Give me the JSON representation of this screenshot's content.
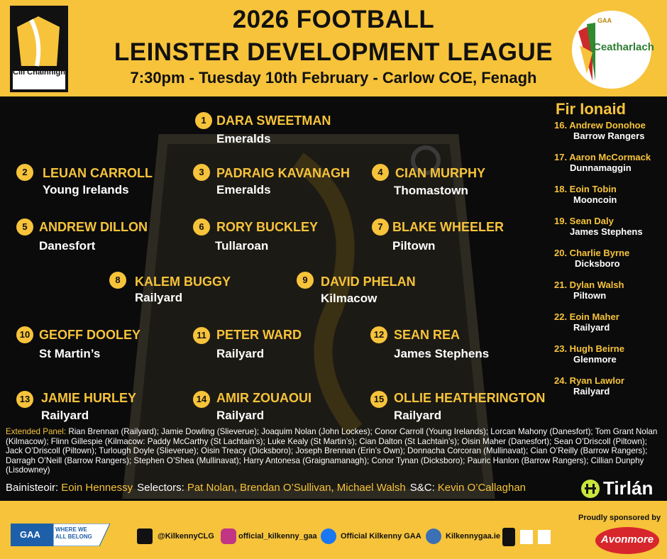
{
  "header": {
    "title_line1": "2026 FOOTBALL",
    "title_line2": "LEINSTER DEVELOPMENT LEAGUE",
    "subtitle": "7:30pm - Tuesday 10th February - Carlow COE, Fenagh",
    "left_logo": "Cill Chainnigh",
    "right_logo_gaa": "GAA",
    "right_logo": "Ceatharlach"
  },
  "players": [
    {
      "number": "1",
      "name": "DARA SWEETMAN",
      "club": "Emeralds"
    },
    {
      "number": "2",
      "name": "LEUAN CARROLL",
      "club": "Young Irelands"
    },
    {
      "number": "3",
      "name": "PADRAIG KAVANAGH",
      "club": "Emeralds"
    },
    {
      "number": "4",
      "name": "CIAN MURPHY",
      "club": "Thomastown"
    },
    {
      "number": "5",
      "name": "ANDREW DILLON",
      "club": "Danesfort"
    },
    {
      "number": "6",
      "name": "RORY BUCKLEY",
      "club": "Tullaroan"
    },
    {
      "number": "7",
      "name": "BLAKE WHEELER",
      "club": "Piltown"
    },
    {
      "number": "8",
      "name": "KALEM BUGGY",
      "club": "Railyard"
    },
    {
      "number": "9",
      "name": "DAVID PHELAN",
      "club": "Kilmacow"
    },
    {
      "number": "10",
      "name": "GEOFF DOOLEY",
      "club": "St Martin’s"
    },
    {
      "number": "11",
      "name": "PETER WARD",
      "club": "Railyard"
    },
    {
      "number": "12",
      "name": "SEAN REA",
      "club": "James Stephens"
    },
    {
      "number": "13",
      "name": "JAMIE HURLEY",
      "club": "Railyard"
    },
    {
      "number": "14",
      "name": "AMIR ZOUAOUI",
      "club": "Railyard"
    },
    {
      "number": "15",
      "name": "OLLIE HEATHERINGTON",
      "club": "Railyard"
    }
  ],
  "subs": {
    "title": "Fir Ionaid",
    "items": [
      {
        "label": "16. Andrew Donohoe",
        "club": "Barrow Rangers"
      },
      {
        "label": "17. Aaron McCormack",
        "club": "Dunnamaggin"
      },
      {
        "label": "18. Eoin Tobin",
        "club": "Mooncoin"
      },
      {
        "label": "19. Sean Daly",
        "club": "James Stephens"
      },
      {
        "label": "20. Charlie Byrne",
        "club": "Dicksboro"
      },
      {
        "label": "21. Dylan Walsh",
        "club": "Piltown"
      },
      {
        "label": "22. Eoin Maher",
        "club": "Railyard"
      },
      {
        "label": "23. Hugh Beirne",
        "club": "Glenmore"
      },
      {
        "label": "24. Ryan Lawlor",
        "club": "Railyard"
      }
    ]
  },
  "extended_panel": {
    "label": "Extended Panel:",
    "text": "Rian Brennan (Railyard); Jamie Dowling (Slieverue); Joaquim Nolan (John Lockes); Conor Carroll (Young Irelands); Lorcan Mahony (Danesfort); Tom Grant Nolan (Kilmacow); Flinn Gillespie (Kilmacow: Paddy McCarthy (St Lachtain’s); Luke Kealy (St Martin’s); Cian Dalton (St Lachtain’s); Oisin Maher (Danesfort); Sean O’Driscoll (Piltown); Jack O’Driscoll (Piltown); Turlough Doyle (Slieverue); Oisin Treacy (Dicksboro); Joseph Brennan (Erin’s Own); Donnacha Corcoran (Mullinavat); Cian O’Reilly (Barrow Rangers); Darragh O’Neill (Barrow Rangers);  Stephen O’Shea (Mullinavat); Harry Antonesa (Graignamanagh); Conor Tynan (Dicksboro); Pauric Hanlon (Barrow Rangers); Cillian Dunphy (Lisdowney)"
  },
  "management": [
    {
      "label": "Bainisteoir:",
      "value": "Eoin Hennessy"
    },
    {
      "label": "Selectors:",
      "value": "Pat Nolan, Brendan O’Sullivan, Michael Walsh"
    },
    {
      "label": "S&C:",
      "value": "Kevin O’Callaghan"
    }
  ],
  "footer": {
    "gaa": "GAA",
    "slogan": "WHERE WE ALL BELONG",
    "social": [
      "@KilkennyCLG",
      "official_kilkenny_gaa",
      "Official Kilkenny GAA",
      "Kilkennygaa.ie"
    ],
    "tirlan": "Tirlán",
    "sponsored_by": "Proudly sponsored by",
    "sponsor": "Avonmore"
  }
}
